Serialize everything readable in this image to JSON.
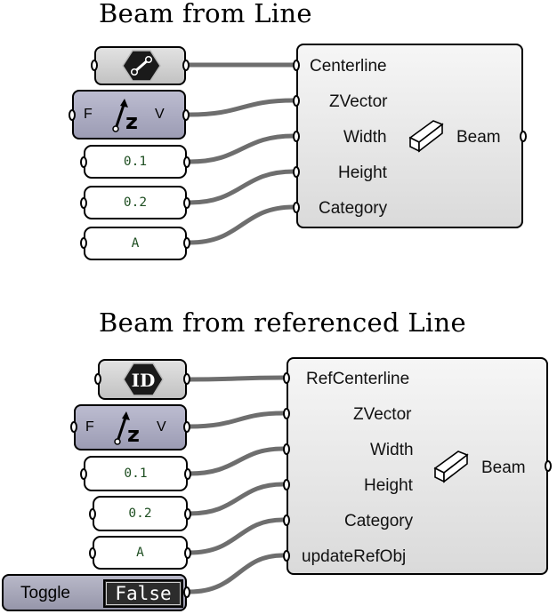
{
  "diagram1": {
    "title": "Beam from Line",
    "vector_node": {
      "left": "F",
      "right": "V"
    },
    "panels": [
      "0.1",
      "0.2",
      "A"
    ],
    "component": {
      "inputs": [
        "Centerline",
        "ZVector",
        "Width",
        "Height",
        "Category"
      ],
      "output": "Beam"
    }
  },
  "diagram2": {
    "title": "Beam from referenced Line",
    "id_node_label": "ID",
    "vector_node": {
      "left": "F",
      "right": "V"
    },
    "panels": [
      "0.1",
      "0.2",
      "A"
    ],
    "toggle": {
      "label": "Toggle",
      "value": "False"
    },
    "component": {
      "inputs": [
        "RefCenterline",
        "ZVector",
        "Width",
        "Height",
        "Category",
        "updateRefObj"
      ],
      "output": "Beam"
    }
  },
  "icons": [
    "line-param-icon",
    "vector-z-icon",
    "beam-box-icon",
    "id-param-icon"
  ],
  "colors": {
    "wire": "#6e6e6e",
    "panel_text": "#1f4f22",
    "vector_node": "#9c9cb4"
  }
}
